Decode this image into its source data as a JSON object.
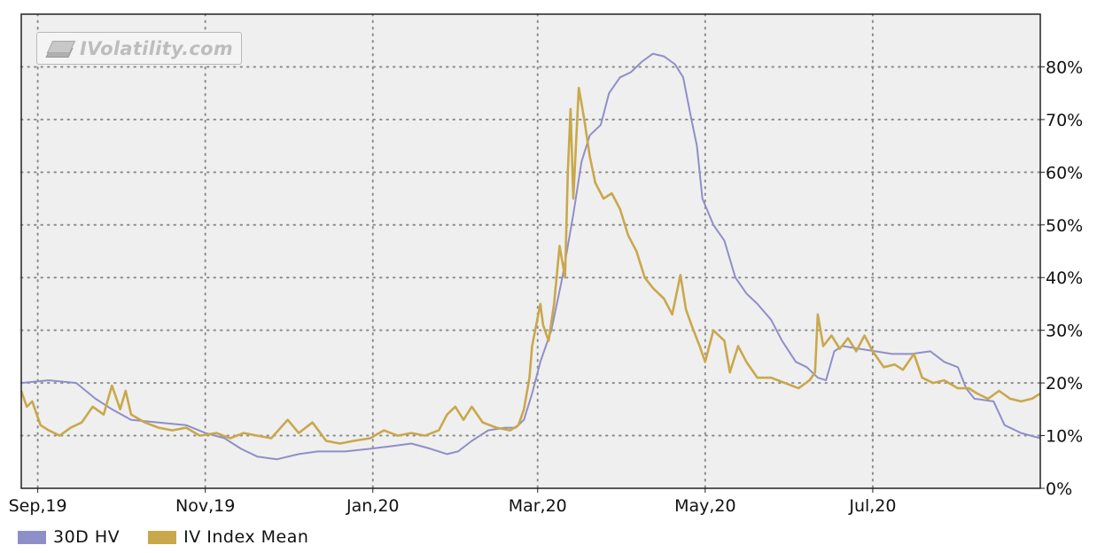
{
  "watermark": {
    "text": "IVolatility.com"
  },
  "colors": {
    "plot_bg": "#efefef",
    "grid": "#8c8c8c",
    "hv": "#8f8fc8",
    "iv": "#c9a84c",
    "frame": "#222222"
  },
  "chart_data": {
    "type": "line",
    "title": "",
    "xlabel": "",
    "ylabel": "",
    "x_range": [
      "2019-08-26",
      "2020-08-31"
    ],
    "ylim": [
      0,
      90
    ],
    "grid": true,
    "legend_position": "bottom-left",
    "x_tick_labels": [
      {
        "label": "Sep,19",
        "date": "2019-09-01"
      },
      {
        "label": "Nov,19",
        "date": "2019-11-01"
      },
      {
        "label": "Jan,20",
        "date": "2020-01-01"
      },
      {
        "label": "Mar,20",
        "date": "2020-03-01"
      },
      {
        "label": "May,20",
        "date": "2020-05-01"
      },
      {
        "label": "Jul,20",
        "date": "2020-07-01"
      }
    ],
    "y_ticks": [
      {
        "value": 0,
        "label": "0%"
      },
      {
        "value": 10,
        "label": "10%"
      },
      {
        "value": 20,
        "label": "20%"
      },
      {
        "value": 30,
        "label": "30%"
      },
      {
        "value": 40,
        "label": "40%"
      },
      {
        "value": 50,
        "label": "50%"
      },
      {
        "value": 60,
        "label": "60%"
      },
      {
        "value": 70,
        "label": "70%"
      },
      {
        "value": 80,
        "label": "80%"
      }
    ],
    "series": [
      {
        "name": "30D HV",
        "color": "#8f8fc8",
        "points": [
          [
            "2019-08-26",
            20
          ],
          [
            "2019-09-05",
            20.5
          ],
          [
            "2019-09-15",
            20
          ],
          [
            "2019-09-22",
            17
          ],
          [
            "2019-09-28",
            15
          ],
          [
            "2019-10-05",
            13
          ],
          [
            "2019-10-15",
            12.5
          ],
          [
            "2019-10-25",
            12
          ],
          [
            "2019-11-01",
            10.5
          ],
          [
            "2019-11-08",
            9.5
          ],
          [
            "2019-11-14",
            7.5
          ],
          [
            "2019-11-20",
            6
          ],
          [
            "2019-11-27",
            5.5
          ],
          [
            "2019-12-05",
            6.5
          ],
          [
            "2019-12-12",
            7
          ],
          [
            "2019-12-22",
            7
          ],
          [
            "2019-12-31",
            7.5
          ],
          [
            "2020-01-08",
            8
          ],
          [
            "2020-01-15",
            8.5
          ],
          [
            "2020-01-22",
            7.5
          ],
          [
            "2020-01-28",
            6.5
          ],
          [
            "2020-02-01",
            7
          ],
          [
            "2020-02-06",
            9
          ],
          [
            "2020-02-12",
            11
          ],
          [
            "2020-02-18",
            11.5
          ],
          [
            "2020-02-22",
            11.5
          ],
          [
            "2020-02-25",
            13
          ],
          [
            "2020-02-28",
            18
          ],
          [
            "2020-03-02",
            24
          ],
          [
            "2020-03-06",
            30
          ],
          [
            "2020-03-10",
            40
          ],
          [
            "2020-03-14",
            52
          ],
          [
            "2020-03-17",
            62
          ],
          [
            "2020-03-20",
            67
          ],
          [
            "2020-03-24",
            69
          ],
          [
            "2020-03-27",
            75
          ],
          [
            "2020-03-31",
            78
          ],
          [
            "2020-04-04",
            79
          ],
          [
            "2020-04-08",
            81
          ],
          [
            "2020-04-12",
            82.5
          ],
          [
            "2020-04-16",
            82
          ],
          [
            "2020-04-20",
            80.5
          ],
          [
            "2020-04-23",
            78
          ],
          [
            "2020-04-26",
            70
          ],
          [
            "2020-04-28",
            65
          ],
          [
            "2020-04-30",
            55
          ],
          [
            "2020-05-04",
            50
          ],
          [
            "2020-05-08",
            47
          ],
          [
            "2020-05-12",
            40
          ],
          [
            "2020-05-16",
            37
          ],
          [
            "2020-05-20",
            35
          ],
          [
            "2020-05-25",
            32
          ],
          [
            "2020-05-29",
            28
          ],
          [
            "2020-06-03",
            24
          ],
          [
            "2020-06-07",
            23
          ],
          [
            "2020-06-11",
            21
          ],
          [
            "2020-06-14",
            20.5
          ],
          [
            "2020-06-17",
            26
          ],
          [
            "2020-06-20",
            27
          ],
          [
            "2020-06-26",
            26.5
          ],
          [
            "2020-07-02",
            26
          ],
          [
            "2020-07-08",
            25.5
          ],
          [
            "2020-07-15",
            25.5
          ],
          [
            "2020-07-22",
            26
          ],
          [
            "2020-07-27",
            24
          ],
          [
            "2020-08-01",
            23
          ],
          [
            "2020-08-04",
            19
          ],
          [
            "2020-08-07",
            17
          ],
          [
            "2020-08-14",
            16.5
          ],
          [
            "2020-08-18",
            12
          ],
          [
            "2020-08-24",
            10.5
          ],
          [
            "2020-08-31",
            9.5
          ]
        ]
      },
      {
        "name": "IV Index Mean",
        "color": "#c9a84c",
        "points": [
          [
            "2019-08-26",
            18.5
          ],
          [
            "2019-08-28",
            15.5
          ],
          [
            "2019-08-30",
            16.5
          ],
          [
            "2019-09-02",
            12
          ],
          [
            "2019-09-05",
            11
          ],
          [
            "2019-09-09",
            10
          ],
          [
            "2019-09-13",
            11.5
          ],
          [
            "2019-09-17",
            12.5
          ],
          [
            "2019-09-21",
            15.5
          ],
          [
            "2019-09-25",
            14
          ],
          [
            "2019-09-28",
            19.5
          ],
          [
            "2019-10-01",
            15
          ],
          [
            "2019-10-03",
            18.5
          ],
          [
            "2019-10-05",
            14
          ],
          [
            "2019-10-10",
            12.5
          ],
          [
            "2019-10-15",
            11.5
          ],
          [
            "2019-10-20",
            11
          ],
          [
            "2019-10-25",
            11.5
          ],
          [
            "2019-10-30",
            10
          ],
          [
            "2019-11-05",
            10.5
          ],
          [
            "2019-11-10",
            9.5
          ],
          [
            "2019-11-15",
            10.5
          ],
          [
            "2019-11-20",
            10
          ],
          [
            "2019-11-25",
            9.5
          ],
          [
            "2019-12-01",
            13
          ],
          [
            "2019-12-05",
            10.5
          ],
          [
            "2019-12-10",
            12.5
          ],
          [
            "2019-12-15",
            9
          ],
          [
            "2019-12-20",
            8.5
          ],
          [
            "2019-12-25",
            9
          ],
          [
            "2019-12-31",
            9.5
          ],
          [
            "2020-01-05",
            11
          ],
          [
            "2020-01-10",
            10
          ],
          [
            "2020-01-15",
            10.5
          ],
          [
            "2020-01-20",
            10
          ],
          [
            "2020-01-25",
            11
          ],
          [
            "2020-01-28",
            14
          ],
          [
            "2020-01-31",
            15.5
          ],
          [
            "2020-02-03",
            13
          ],
          [
            "2020-02-06",
            15.5
          ],
          [
            "2020-02-10",
            12.5
          ],
          [
            "2020-02-15",
            11.5
          ],
          [
            "2020-02-20",
            11
          ],
          [
            "2020-02-23",
            12
          ],
          [
            "2020-02-25",
            15
          ],
          [
            "2020-02-27",
            21
          ],
          [
            "2020-02-28",
            27
          ],
          [
            "2020-03-02",
            35
          ],
          [
            "2020-03-03",
            31
          ],
          [
            "2020-03-05",
            28
          ],
          [
            "2020-03-07",
            35
          ],
          [
            "2020-03-09",
            46
          ],
          [
            "2020-03-11",
            40
          ],
          [
            "2020-03-12",
            60
          ],
          [
            "2020-03-13",
            72
          ],
          [
            "2020-03-14",
            55
          ],
          [
            "2020-03-16",
            76
          ],
          [
            "2020-03-18",
            70
          ],
          [
            "2020-03-20",
            63
          ],
          [
            "2020-03-22",
            58
          ],
          [
            "2020-03-25",
            55
          ],
          [
            "2020-03-28",
            56
          ],
          [
            "2020-03-31",
            53
          ],
          [
            "2020-04-03",
            48
          ],
          [
            "2020-04-06",
            45
          ],
          [
            "2020-04-09",
            40
          ],
          [
            "2020-04-12",
            38
          ],
          [
            "2020-04-16",
            36
          ],
          [
            "2020-04-19",
            33
          ],
          [
            "2020-04-21",
            38
          ],
          [
            "2020-04-22",
            40.5
          ],
          [
            "2020-04-24",
            34
          ],
          [
            "2020-04-26",
            31
          ],
          [
            "2020-04-29",
            27
          ],
          [
            "2020-05-01",
            24
          ],
          [
            "2020-05-04",
            30
          ],
          [
            "2020-05-08",
            28
          ],
          [
            "2020-05-10",
            22
          ],
          [
            "2020-05-13",
            27
          ],
          [
            "2020-05-16",
            24
          ],
          [
            "2020-05-20",
            21
          ],
          [
            "2020-05-25",
            21
          ],
          [
            "2020-05-30",
            20
          ],
          [
            "2020-06-04",
            19
          ],
          [
            "2020-06-08",
            20.5
          ],
          [
            "2020-06-10",
            22
          ],
          [
            "2020-06-11",
            33
          ],
          [
            "2020-06-13",
            27
          ],
          [
            "2020-06-16",
            29
          ],
          [
            "2020-06-19",
            26.5
          ],
          [
            "2020-06-22",
            28.5
          ],
          [
            "2020-06-25",
            26
          ],
          [
            "2020-06-28",
            29
          ],
          [
            "2020-07-01",
            26
          ],
          [
            "2020-07-05",
            23
          ],
          [
            "2020-07-09",
            23.5
          ],
          [
            "2020-07-12",
            22.5
          ],
          [
            "2020-07-16",
            25.5
          ],
          [
            "2020-07-19",
            21
          ],
          [
            "2020-07-23",
            20
          ],
          [
            "2020-07-27",
            20.5
          ],
          [
            "2020-08-01",
            19
          ],
          [
            "2020-08-05",
            19
          ],
          [
            "2020-08-08",
            18
          ],
          [
            "2020-08-12",
            17
          ],
          [
            "2020-08-16",
            18.5
          ],
          [
            "2020-08-20",
            17
          ],
          [
            "2020-08-24",
            16.5
          ],
          [
            "2020-08-28",
            17
          ],
          [
            "2020-08-31",
            18
          ]
        ]
      }
    ]
  }
}
